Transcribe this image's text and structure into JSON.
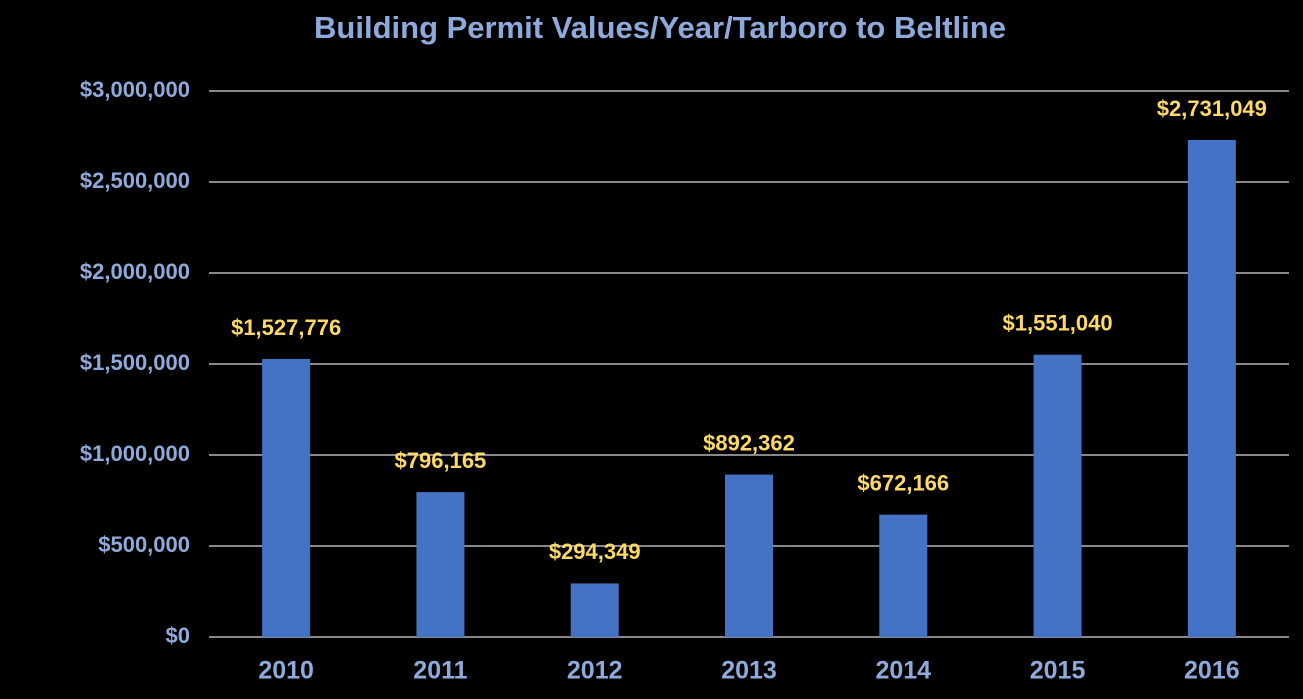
{
  "chart_data": {
    "type": "bar",
    "title": "Building Permit Values/Year/Tarboro to Beltline",
    "categories": [
      "2010",
      "2011",
      "2012",
      "2013",
      "2014",
      "2015",
      "2016"
    ],
    "values": [
      1527776,
      796165,
      294349,
      892362,
      672166,
      1551040,
      2731049
    ],
    "value_labels": [
      "$1,527,776",
      "$796,165",
      "$294,349",
      "$892,362",
      "$672,166",
      "$1,551,040",
      "$2,731,049"
    ],
    "color": "#4472c4",
    "ylim": [
      0,
      3000000
    ],
    "yticks": [
      {
        "value": 0,
        "label": "$0"
      },
      {
        "value": 500000,
        "label": "$500,000"
      },
      {
        "value": 1000000,
        "label": "$1,000,000"
      },
      {
        "value": 1500000,
        "label": "$1,500,000"
      },
      {
        "value": 2000000,
        "label": "$2,000,000"
      },
      {
        "value": 2500000,
        "label": "$2,500,000"
      },
      {
        "value": 3000000,
        "label": "$3,000,000"
      }
    ],
    "grid": true
  }
}
